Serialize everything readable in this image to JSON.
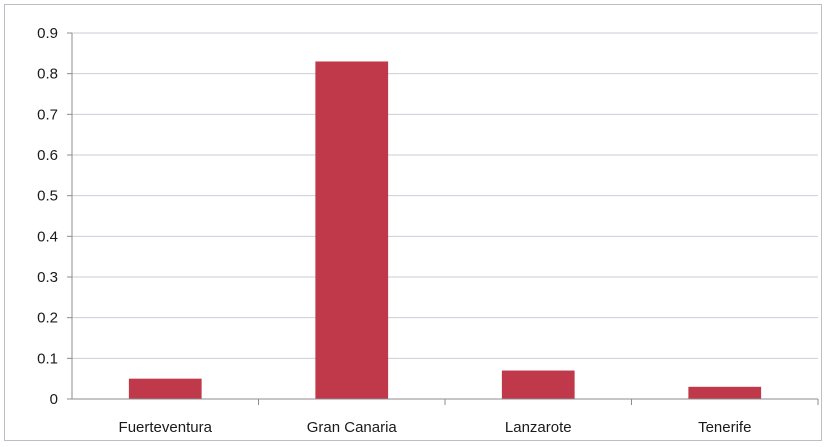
{
  "chart_data": {
    "type": "bar",
    "title": "",
    "xlabel": "",
    "ylabel": "",
    "categories": [
      "Fuerteventura",
      "Gran Canaria",
      "Lanzarote",
      "Tenerife"
    ],
    "values": [
      0.05,
      0.83,
      0.07,
      0.03
    ],
    "ylim": [
      0,
      0.9
    ],
    "yticks": [
      "0",
      "0.1",
      "0.2",
      "0.3",
      "0.4",
      "0.5",
      "0.6",
      "0.7",
      "0.8",
      "0.9"
    ],
    "grid": true,
    "legend": "none",
    "bar_color": "#c0394b"
  }
}
